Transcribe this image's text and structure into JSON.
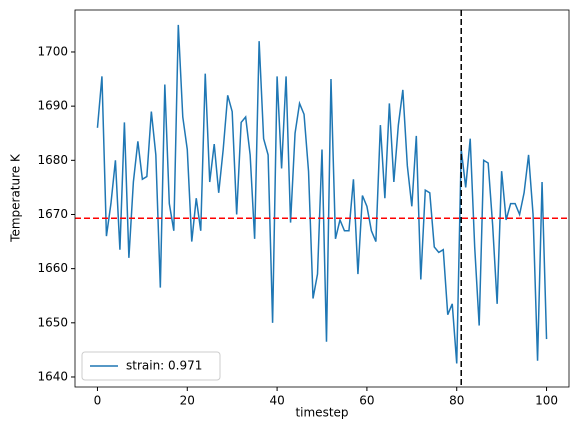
{
  "chart_data": {
    "type": "line",
    "xlabel": "timestep",
    "ylabel": "Temperature K",
    "x": [
      0,
      1,
      2,
      3,
      4,
      5,
      6,
      7,
      8,
      9,
      10,
      11,
      12,
      13,
      14,
      15,
      16,
      17,
      18,
      19,
      20,
      21,
      22,
      23,
      24,
      25,
      26,
      27,
      28,
      29,
      30,
      31,
      32,
      33,
      34,
      35,
      36,
      37,
      38,
      39,
      40,
      41,
      42,
      43,
      44,
      45,
      46,
      47,
      48,
      49,
      50,
      51,
      52,
      53,
      54,
      55,
      56,
      57,
      58,
      59,
      60,
      61,
      62,
      63,
      64,
      65,
      66,
      67,
      68,
      69,
      70,
      71,
      72,
      73,
      74,
      75,
      76,
      77,
      78,
      79,
      80,
      81,
      82,
      83,
      84,
      85,
      86,
      87,
      88,
      89,
      90,
      91,
      92,
      93,
      94,
      95,
      96,
      97,
      98,
      99,
      100
    ],
    "series": [
      {
        "name": "strain: 0.971",
        "color": "#1f77b4",
        "values": [
          1686,
          1695.5,
          1666,
          1672,
          1680,
          1663.5,
          1687,
          1662,
          1676,
          1683.5,
          1676.5,
          1677,
          1689,
          1681,
          1656.5,
          1694,
          1672,
          1667,
          1705,
          1688,
          1682,
          1665,
          1673,
          1667,
          1696,
          1676,
          1683,
          1674,
          1682,
          1692,
          1689,
          1670,
          1687,
          1688,
          1681,
          1665.5,
          1702,
          1684,
          1681,
          1650,
          1695.5,
          1678.5,
          1695.5,
          1668.5,
          1685,
          1690.5,
          1688.5,
          1678,
          1654.5,
          1659,
          1682,
          1646.5,
          1695,
          1665.5,
          1669,
          1667,
          1667,
          1676.5,
          1659,
          1673.5,
          1671.5,
          1667,
          1665,
          1686.5,
          1673,
          1690.5,
          1676,
          1686.5,
          1693,
          1679,
          1671.5,
          1684.5,
          1658,
          1674.5,
          1674,
          1664,
          1663,
          1663.5,
          1651.5,
          1653.5,
          1642.5,
          1682,
          1675,
          1684,
          1664,
          1649.5,
          1680,
          1679.5,
          1668,
          1653.5,
          1678,
          1669,
          1672,
          1672,
          1670,
          1674,
          1681,
          1670,
          1643,
          1676,
          1647
        ]
      }
    ],
    "hline": {
      "value": 1669.3,
      "color": "#ff0000"
    },
    "vline": {
      "value": 81,
      "color": "#000000"
    },
    "xlim": [
      -5,
      105
    ],
    "ylim": [
      1638.15,
      1707.75
    ],
    "xticks": [
      0,
      20,
      40,
      60,
      80,
      100
    ],
    "yticks": [
      1640,
      1650,
      1660,
      1670,
      1680,
      1690,
      1700
    ],
    "legend": "lower left"
  }
}
